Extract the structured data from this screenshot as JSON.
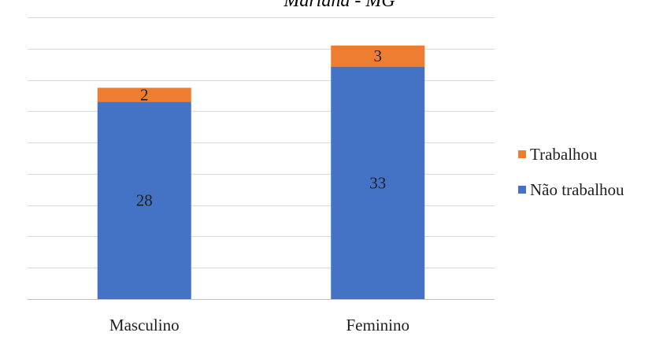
{
  "chart_data": {
    "type": "bar",
    "stacked": true,
    "title": "Mariana - MG",
    "categories": [
      "Masculino",
      "Feminino"
    ],
    "series": [
      {
        "name": "Não trabalhou",
        "values": [
          28,
          33
        ],
        "color": "#4472C4"
      },
      {
        "name": "Trabalhou",
        "values": [
          2,
          3
        ],
        "color": "#ED7D31"
      }
    ],
    "legend_order": [
      "Trabalhou",
      "Não trabalhou"
    ],
    "ylim": [
      0,
      40
    ],
    "y_gridline_step": 4.4444,
    "y_tick_labels_visible": false,
    "grid": true,
    "legend_position": "right",
    "gridline_color": "#d9d9d9",
    "axis_color": "#bfbfbf"
  }
}
